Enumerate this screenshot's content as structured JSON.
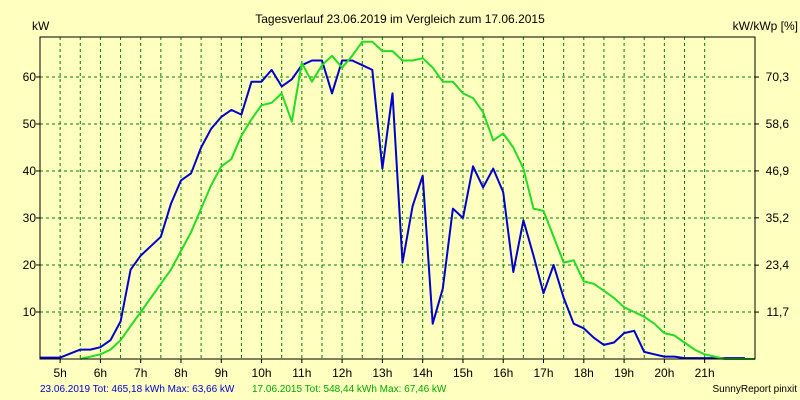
{
  "chart_data": {
    "type": "line",
    "title": "Tagesverlauf 23.06.2019 im Vergleich zum 17.06.2015",
    "ylabel_left": "kW",
    "ylabel_right": "kW/kWp [%]",
    "x_unit": "hour",
    "xlim": [
      4.5,
      22.25
    ],
    "ylim_left": [
      0,
      68.5
    ],
    "x_ticks": [
      5,
      6,
      7,
      8,
      9,
      10,
      11,
      12,
      13,
      14,
      15,
      16,
      17,
      18,
      19,
      20,
      21
    ],
    "x_tick_labels": [
      "5h",
      "6h",
      "7h",
      "8h",
      "9h",
      "10h",
      "11h",
      "12h",
      "13h",
      "14h",
      "15h",
      "16h",
      "17h",
      "18h",
      "19h",
      "20h",
      "21h"
    ],
    "y_ticks_left": [
      10,
      20,
      30,
      40,
      50,
      60
    ],
    "y_tick_labels_left": [
      "10",
      "20",
      "30",
      "40",
      "50",
      "60"
    ],
    "y_ticks_right": [
      11.7,
      23.4,
      35.2,
      46.9,
      58.6,
      70.3
    ],
    "y_tick_labels_right": [
      "11,7",
      "23,4",
      "35,2",
      "46,9",
      "58,6",
      "70,3"
    ],
    "right_axis_scale": 1.172,
    "grid": true,
    "series": [
      {
        "color": "#0000cc",
        "x": [
          4.5,
          5.0,
          5.5,
          5.75,
          6.0,
          6.25,
          6.5,
          6.75,
          7.0,
          7.25,
          7.5,
          7.75,
          8.0,
          8.25,
          8.5,
          8.75,
          9.0,
          9.25,
          9.5,
          9.75,
          10.0,
          10.25,
          10.5,
          10.75,
          11.0,
          11.25,
          11.5,
          11.75,
          12.0,
          12.25,
          12.5,
          12.75,
          13.0,
          13.25,
          13.5,
          13.75,
          14.0,
          14.25,
          14.5,
          14.75,
          15.0,
          15.25,
          15.5,
          15.75,
          16.0,
          16.25,
          16.5,
          16.75,
          17.0,
          17.25,
          17.5,
          17.75,
          18.0,
          18.25,
          18.5,
          18.75,
          19.0,
          19.25,
          19.5,
          19.75,
          20.0,
          20.25,
          20.5,
          20.75,
          21.0,
          21.25,
          21.5,
          22.0
        ],
        "values": [
          0.3,
          0.3,
          2,
          2,
          2.5,
          4,
          8,
          19,
          22,
          24,
          26,
          33,
          38,
          39.5,
          45,
          49,
          51.5,
          53,
          52,
          59,
          59,
          61.5,
          58,
          59.5,
          62.5,
          63.5,
          63.5,
          56.5,
          63.5,
          63.5,
          62.5,
          61.5,
          40.5,
          56.5,
          20.5,
          32.5,
          39,
          7.5,
          15,
          32,
          30,
          41,
          36.5,
          40.5,
          35.5,
          18.5,
          29.5,
          22,
          14,
          20,
          13,
          7.5,
          6.5,
          4.5,
          3,
          3.5,
          5.5,
          6,
          1.5,
          1,
          0.5,
          0.5,
          0.2,
          0.2,
          0.2,
          0.2,
          0.2,
          0.2
        ]
      },
      {
        "color": "#22dd22",
        "x": [
          5.5,
          6.0,
          6.25,
          6.5,
          6.75,
          7.0,
          7.25,
          7.5,
          7.75,
          8.0,
          8.25,
          8.5,
          8.75,
          9.0,
          9.25,
          9.5,
          9.75,
          10.0,
          10.25,
          10.5,
          10.75,
          11.0,
          11.25,
          11.5,
          11.75,
          12.0,
          12.25,
          12.5,
          12.75,
          13.0,
          13.25,
          13.5,
          13.75,
          14.0,
          14.25,
          14.5,
          14.75,
          15.0,
          15.25,
          15.5,
          15.75,
          16.0,
          16.25,
          16.5,
          16.75,
          17.0,
          17.25,
          17.5,
          17.75,
          18.0,
          18.25,
          18.5,
          18.75,
          19.0,
          19.25,
          19.5,
          19.75,
          20.0,
          20.25,
          20.5,
          20.75,
          21.0,
          21.25,
          21.5,
          21.75,
          22.25
        ],
        "values": [
          0,
          1,
          2,
          4,
          7,
          10,
          13,
          16,
          19,
          23,
          27,
          32,
          37,
          41,
          42.5,
          47.5,
          51,
          54,
          54.5,
          56.5,
          50.5,
          63,
          59,
          62.5,
          64.5,
          62,
          64.5,
          67.5,
          67.5,
          65.5,
          65.5,
          63.5,
          63.5,
          64,
          62,
          59,
          59,
          56.5,
          55.5,
          52.5,
          46.5,
          48,
          45,
          40.5,
          32,
          31.5,
          26,
          20.5,
          21,
          16.5,
          16,
          14.5,
          13,
          11,
          10,
          9,
          7.5,
          5.5,
          5,
          3.5,
          2,
          1,
          0.5,
          0,
          0,
          0
        ]
      }
    ]
  },
  "footer": {
    "series1_summary": "23.06.2019 Tot: 465,18 kWh Max: 63,66 kW",
    "series2_summary": "17.06.2015 Tot: 548,44 kWh Max: 67,46 kW",
    "credit": "SunnyReport pinxit"
  },
  "colors": {
    "background": "#ffffc0",
    "grid": "#008000",
    "axis": "#000000"
  }
}
